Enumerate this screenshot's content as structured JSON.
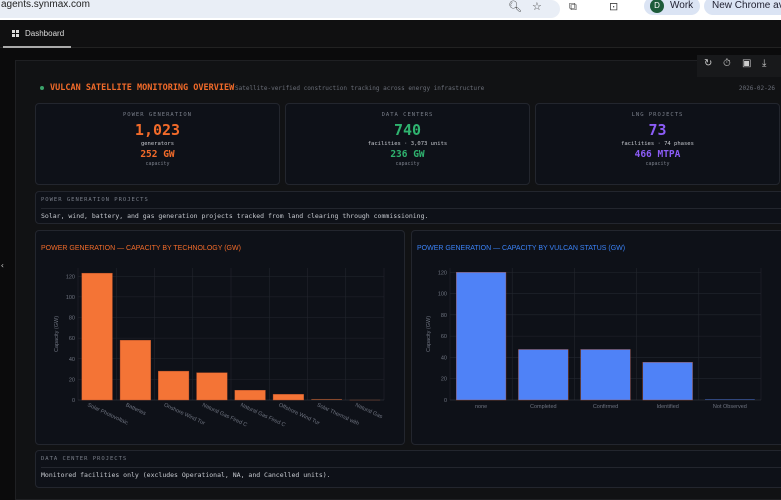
{
  "browser": {
    "url": "agents.synmax.com",
    "profile_initial": "D",
    "profile_label": "Work",
    "new_chrome": "New Chrome avai"
  },
  "tabs": [
    {
      "label": "Dashboard",
      "active": true
    }
  ],
  "toolbar": {
    "icons": [
      "refresh-icon",
      "timer-icon",
      "image-icon",
      "download-icon"
    ]
  },
  "header": {
    "title": "VULCAN SATELLITE MONITORING OVERVIEW",
    "subtitle": "Satellite-verified construction tracking across energy infrastructure",
    "date": "2026-02-26"
  },
  "cards": [
    {
      "label": "POWER GENERATION",
      "value": "1,023",
      "sub": "generators",
      "capacity": "252 GW",
      "capacity_label": "capacity",
      "color": "#f26b2a"
    },
    {
      "label": "DATA CENTERS",
      "value": "740",
      "sub": "facilities · 3,073 units",
      "capacity": "236 GW",
      "capacity_label": "capacity",
      "color": "#2fb36f"
    },
    {
      "label": "LNG PROJECTS",
      "value": "73",
      "sub": "facilities · 74 phases",
      "capacity": "466 MTPA",
      "capacity_label": "capacity",
      "color": "#8b5cf6"
    }
  ],
  "sections": [
    {
      "title": "POWER GENERATION PROJECTS",
      "desc": "Solar, wind, battery, and gas generation projects tracked from land clearing through commissioning."
    },
    {
      "title": "DATA CENTER PROJECTS",
      "desc": "Monitored facilities only (excludes Operational, NA, and Cancelled units)."
    }
  ],
  "chart_data": [
    {
      "type": "bar",
      "title": "POWER GENERATION — CAPACITY BY TECHNOLOGY (GW)",
      "title_color": "#f26b2a",
      "bar_color": "#f47436",
      "ylabel": "Capacity (GW)",
      "ylim": [
        0,
        128
      ],
      "yticks": [
        0,
        20,
        40,
        60,
        80,
        100,
        120
      ],
      "grid": true,
      "categories": [
        "Solar Photovoltaic",
        "Batteries",
        "Onshore Wind Tur",
        "Natural Gas Fired C",
        "Natural Gas Fired C",
        "Offshore Wind Tur",
        "Solar Thermal with",
        "Natural Gas"
      ],
      "values": [
        123,
        58,
        28,
        26.5,
        9.5,
        5.5,
        1,
        0.2
      ]
    },
    {
      "type": "bar",
      "title": "POWER GENERATION — CAPACITY BY VULCAN STATUS (GW)",
      "title_color": "#3b82f6",
      "bar_color": "#4f82f7",
      "ylabel": "Capacity (GW)",
      "ylim": [
        0,
        124
      ],
      "yticks": [
        0,
        20,
        40,
        60,
        80,
        100,
        120
      ],
      "grid": true,
      "categories": [
        "none",
        "Completed",
        "Confirmed",
        "Identified",
        "Not Observed"
      ],
      "values": [
        120,
        47.5,
        47.5,
        35.5,
        0.8
      ]
    }
  ]
}
